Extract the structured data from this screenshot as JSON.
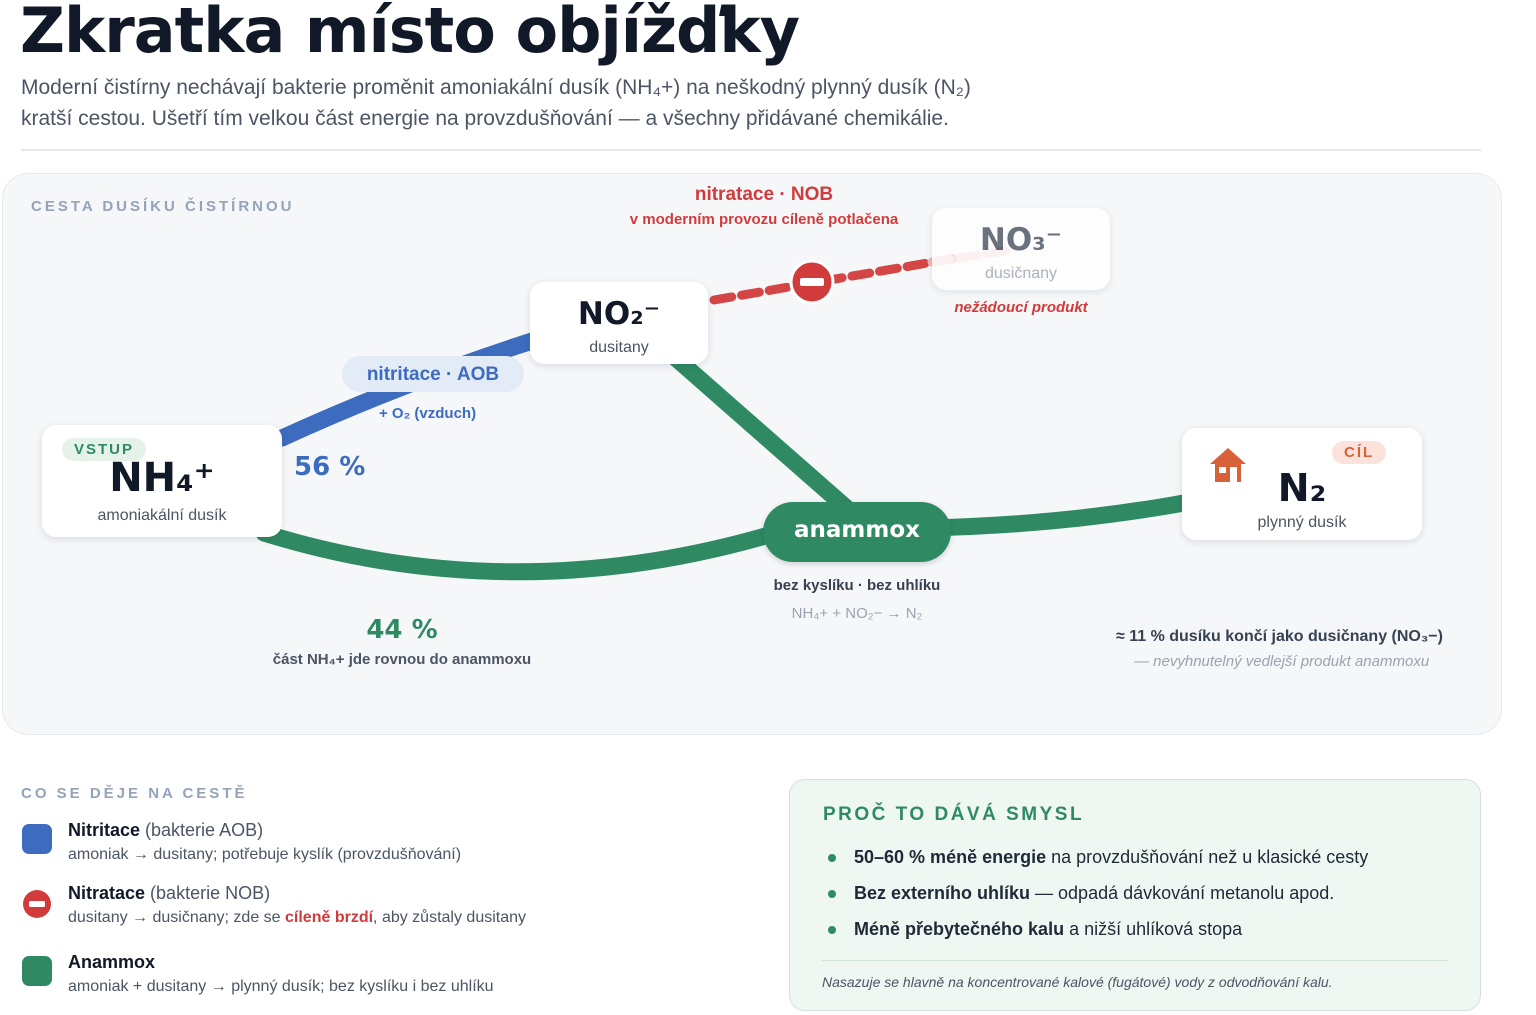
{
  "header": {
    "title": "Zkratka místo objížďky",
    "subtitle_line1": "Moderní čistírny nechávají bakterie proměnit amoniakální dusík (NH₄+) na neškodný plynný dusík (N₂)",
    "subtitle_line2": "kratší cestou. Ušetří tím velkou část energie na provzdušňování — a všechny přidávané chemikálie."
  },
  "diagram": {
    "section_label": "CESTA DUSÍKU ČISTÍRNOU",
    "nodes": {
      "nh4": {
        "badge": "VSTUP",
        "formula": "NH₄⁺",
        "label": "amoniakální dusík"
      },
      "no2": {
        "formula": "NO₂⁻",
        "label": "dusitany"
      },
      "no3": {
        "formula": "NO₃⁻",
        "label": "dusičnany",
        "note": "nežádoucí produkt"
      },
      "n2": {
        "badge": "CÍL",
        "formula": "N₂",
        "label": "plynný dusík",
        "icon": "house-icon"
      },
      "anammox": {
        "label": "anammox",
        "note": "bez kyslíku · bez uhlíku",
        "equation": "NH₄+ + NO₂− → N₂"
      }
    },
    "nitritation": {
      "label": "nitritace · AOB",
      "note": "+ O₂ (vzduch)",
      "share": "56 %"
    },
    "nitratation": {
      "label": "nitratace · NOB",
      "note": "v moderním provozu cíleně potlačena"
    },
    "direct": {
      "share": "44 %",
      "note": "část NH₄+ jde rovnou do anammoxu"
    },
    "side_note": {
      "line1": "≈ 11 % dusíku končí jako dusičnany (NO₃−)",
      "line2": "— nevyhnutelný vedlejší produkt anammoxu"
    },
    "colors": {
      "nitritation": "#3d6cbf",
      "anammox": "#2f8a63",
      "nitratation": "#d23b3b"
    }
  },
  "legend": {
    "title": "CO SE DĚJE NA CESTĚ",
    "items": [
      {
        "name": "Nitritace",
        "who": " (bakterie AOB)",
        "desc": "amoniak → dusitany; potřebuje kyslík (provzdušňování)",
        "icon": "blue-square-icon"
      },
      {
        "name": "Nitratace",
        "who": " (bakterie NOB)",
        "desc_before": "dusitany → dusičnany; zde se ",
        "desc_emph": "cíleně brzdí",
        "desc_after": ", aby zůstaly dusitany",
        "icon": "blocked-icon"
      },
      {
        "name": "Anammox",
        "who": "",
        "desc": "amoniak + dusitany → plynný dusík; bez kyslíku i bez uhlíku",
        "icon": "green-square-icon"
      }
    ]
  },
  "why": {
    "title": "PROČ TO DÁVÁ SMYSL",
    "bullets": [
      {
        "bold": "50–60 % méně energie",
        "rest": " na provzdušňování než u klasické cesty"
      },
      {
        "bold": "Bez externího uhlíku",
        "rest": " — odpadá dávkování metanolu apod."
      },
      {
        "bold": "Méně přebytečného kalu",
        "rest": " a nižší uhlíková stopa"
      }
    ],
    "footnote": "Nasazuje se hlavně na koncentrované kalové (fugátové) vody z odvodňování kalu."
  }
}
